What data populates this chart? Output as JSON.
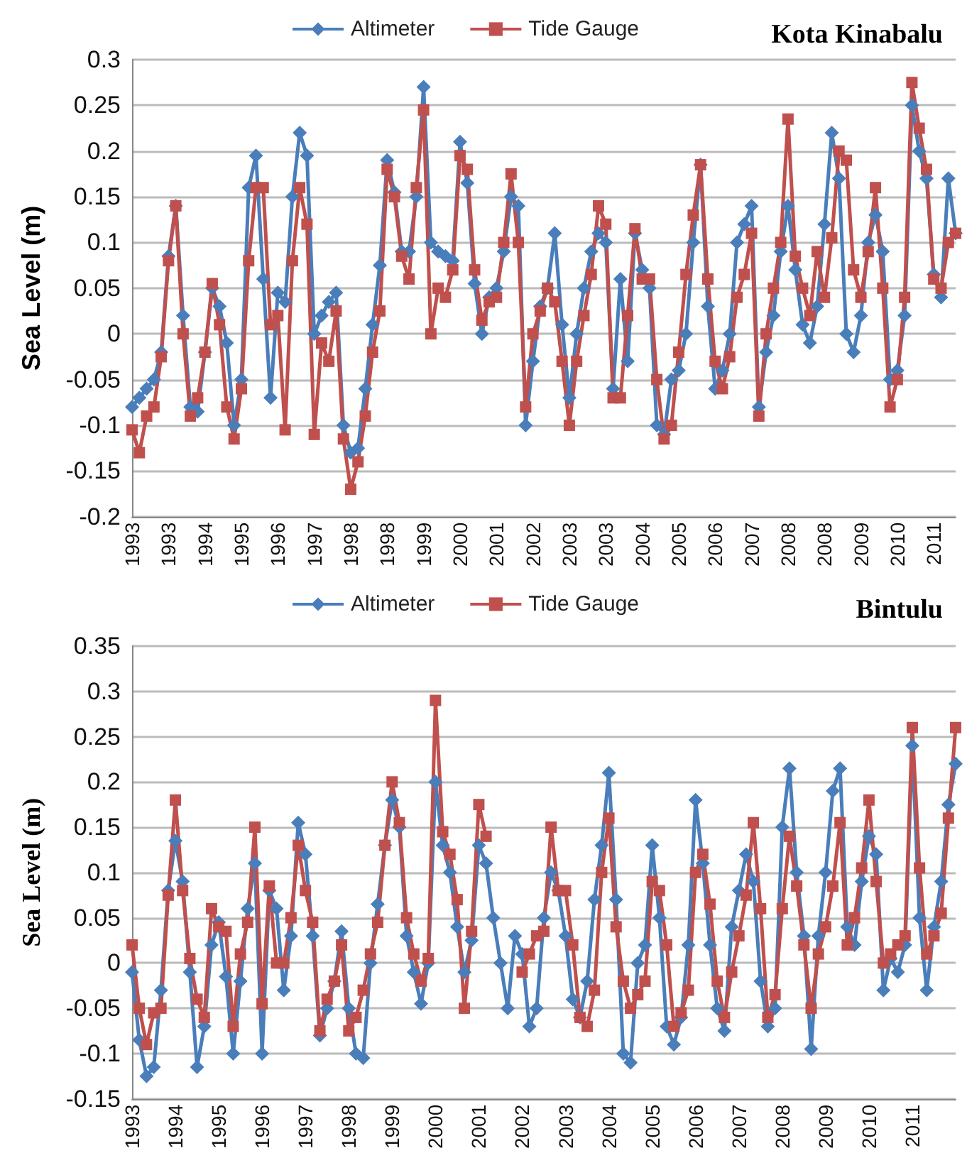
{
  "chart_data": [
    {
      "type": "line",
      "title": "Kota Kinabalu",
      "ylabel": "Sea Level (m)",
      "legend": "top",
      "grid": "y",
      "line_style": "solid",
      "categories": [
        "1993",
        null,
        null,
        null,
        null,
        "1993",
        null,
        null,
        null,
        null,
        "1994",
        null,
        null,
        null,
        null,
        "1995",
        null,
        null,
        null,
        null,
        "1996",
        null,
        null,
        null,
        null,
        "1997",
        null,
        null,
        null,
        null,
        "1998",
        null,
        null,
        null,
        null,
        "1998",
        null,
        null,
        null,
        null,
        "1999",
        null,
        null,
        null,
        null,
        "2000",
        null,
        null,
        null,
        null,
        "2001",
        null,
        null,
        null,
        null,
        "2002",
        null,
        null,
        null,
        null,
        "2003",
        null,
        null,
        null,
        null,
        "2003",
        null,
        null,
        null,
        null,
        "2004",
        null,
        null,
        null,
        null,
        "2005",
        null,
        null,
        null,
        null,
        "2006",
        null,
        null,
        null,
        null,
        "2007",
        null,
        null,
        null,
        null,
        "2008",
        null,
        null,
        null,
        null,
        "2008",
        null,
        null,
        null,
        null,
        "2009",
        null,
        null,
        null,
        null,
        "2010",
        null,
        null,
        null,
        null,
        "2011",
        null,
        null,
        null
      ],
      "ylim": [
        -0.2,
        0.3
      ],
      "yticks": [
        -0.2,
        -0.15,
        -0.1,
        -0.05,
        0,
        0.05,
        0.1,
        0.15,
        0.2,
        0.25,
        0.3
      ],
      "series": [
        {
          "name": "Altimeter",
          "color": "#4a7ebb",
          "marker": "diamond",
          "values": [
            -0.08,
            -0.07,
            -0.06,
            -0.05,
            -0.02,
            0.085,
            0.14,
            0.02,
            -0.08,
            -0.085,
            -0.02,
            0.05,
            0.03,
            -0.01,
            -0.1,
            -0.05,
            0.16,
            0.195,
            0.06,
            -0.07,
            0.045,
            0.035,
            0.15,
            0.22,
            0.195,
            0.0,
            0.02,
            0.035,
            0.045,
            -0.1,
            -0.13,
            -0.125,
            -0.06,
            0.01,
            0.075,
            0.19,
            0.155,
            0.09,
            0.09,
            0.15,
            0.27,
            0.1,
            0.09,
            0.085,
            0.08,
            0.21,
            0.165,
            0.055,
            0.0,
            0.04,
            0.05,
            0.09,
            0.15,
            0.14,
            -0.1,
            -0.03,
            0.03,
            0.05,
            0.11,
            0.01,
            -0.07,
            0.0,
            0.05,
            0.09,
            0.11,
            0.1,
            -0.06,
            0.06,
            -0.03,
            0.11,
            0.07,
            0.05,
            -0.1,
            -0.11,
            -0.05,
            -0.04,
            0.0,
            0.1,
            0.185,
            0.03,
            -0.06,
            -0.04,
            0.0,
            0.1,
            0.12,
            0.14,
            -0.08,
            -0.02,
            0.02,
            0.09,
            0.14,
            0.07,
            0.01,
            -0.01,
            0.03,
            0.12,
            0.22,
            0.17,
            0.0,
            -0.02,
            0.02,
            0.1,
            0.13,
            0.09,
            -0.05,
            -0.04,
            0.02,
            0.25,
            0.2,
            0.17,
            0.065,
            0.04,
            0.17,
            0.11
          ]
        },
        {
          "name": "Tide Gauge",
          "color": "#c0504d",
          "marker": "square",
          "values": [
            -0.105,
            -0.13,
            -0.09,
            -0.08,
            -0.025,
            0.08,
            0.14,
            0.0,
            -0.09,
            -0.07,
            -0.02,
            0.055,
            0.01,
            -0.08,
            -0.115,
            -0.06,
            0.08,
            0.16,
            0.16,
            0.01,
            0.02,
            -0.105,
            0.08,
            0.16,
            0.12,
            -0.11,
            -0.01,
            -0.03,
            0.025,
            -0.115,
            -0.17,
            -0.14,
            -0.09,
            -0.02,
            0.025,
            0.18,
            0.15,
            0.085,
            0.06,
            0.16,
            0.245,
            0.0,
            0.05,
            0.04,
            0.07,
            0.195,
            0.18,
            0.07,
            0.015,
            0.035,
            0.04,
            0.1,
            0.175,
            0.1,
            -0.08,
            0.0,
            0.025,
            0.05,
            0.035,
            -0.03,
            -0.1,
            -0.03,
            0.02,
            0.065,
            0.14,
            0.12,
            -0.07,
            -0.07,
            0.02,
            0.115,
            0.06,
            0.06,
            -0.05,
            -0.115,
            -0.1,
            -0.02,
            0.065,
            0.13,
            0.185,
            0.06,
            -0.03,
            -0.06,
            -0.025,
            0.04,
            0.065,
            0.11,
            -0.09,
            0.0,
            0.05,
            0.1,
            0.235,
            0.085,
            0.05,
            0.02,
            0.09,
            0.04,
            0.105,
            0.2,
            0.19,
            0.07,
            0.04,
            0.09,
            0.16,
            0.05,
            -0.08,
            -0.05,
            0.04,
            0.275,
            0.225,
            0.18,
            0.06,
            0.05,
            0.1,
            0.11
          ]
        }
      ]
    },
    {
      "type": "line",
      "title": "Bintulu",
      "ylabel": "Sea Level (m)",
      "legend": "top",
      "grid": "y",
      "line_style": "solid",
      "categories": [
        "1993",
        null,
        null,
        null,
        null,
        null,
        "1994",
        null,
        null,
        null,
        null,
        null,
        "1995",
        null,
        null,
        null,
        null,
        null,
        "1996",
        null,
        null,
        null,
        null,
        null,
        "1997",
        null,
        null,
        null,
        null,
        null,
        "1998",
        null,
        null,
        null,
        null,
        null,
        "1999",
        null,
        null,
        null,
        null,
        null,
        "2000",
        null,
        null,
        null,
        null,
        null,
        "2001",
        null,
        null,
        null,
        null,
        null,
        "2002",
        null,
        null,
        null,
        null,
        null,
        "2003",
        null,
        null,
        null,
        null,
        null,
        "2004",
        null,
        null,
        null,
        null,
        null,
        "2005",
        null,
        null,
        null,
        null,
        null,
        "2006",
        null,
        null,
        null,
        null,
        null,
        "2007",
        null,
        null,
        null,
        null,
        null,
        "2008",
        null,
        null,
        null,
        null,
        null,
        "2009",
        null,
        null,
        null,
        null,
        null,
        "2010",
        null,
        null,
        null,
        null,
        null,
        "2011",
        null,
        null,
        null,
        null,
        null,
        null
      ],
      "ylim": [
        -0.15,
        0.35
      ],
      "yticks": [
        -0.15,
        -0.1,
        -0.05,
        0,
        0.05,
        0.1,
        0.15,
        0.2,
        0.25,
        0.3,
        0.35
      ],
      "series": [
        {
          "name": "Altimeter",
          "color": "#4a7ebb",
          "marker": "diamond",
          "values": [
            -0.01,
            -0.085,
            -0.125,
            -0.115,
            -0.03,
            0.08,
            0.135,
            0.09,
            -0.01,
            -0.115,
            -0.07,
            0.02,
            0.045,
            -0.015,
            -0.1,
            -0.02,
            0.06,
            0.11,
            -0.1,
            0.08,
            0.06,
            -0.03,
            0.03,
            0.155,
            0.12,
            0.03,
            -0.08,
            -0.05,
            -0.02,
            0.035,
            -0.05,
            -0.1,
            -0.105,
            0.0,
            0.065,
            0.13,
            0.18,
            0.15,
            0.03,
            -0.01,
            -0.045,
            0.0,
            0.2,
            0.13,
            0.1,
            0.04,
            -0.01,
            0.025,
            0.13,
            0.11,
            0.05,
            0.0,
            -0.05,
            0.03,
            0.01,
            -0.07,
            -0.05,
            0.05,
            0.1,
            0.08,
            0.03,
            -0.04,
            -0.06,
            -0.02,
            0.07,
            0.13,
            0.21,
            0.07,
            -0.1,
            -0.11,
            0.0,
            0.02,
            0.13,
            0.05,
            -0.07,
            -0.09,
            -0.06,
            0.02,
            0.18,
            0.11,
            0.02,
            -0.05,
            -0.075,
            0.04,
            0.08,
            0.12,
            0.09,
            -0.02,
            -0.07,
            -0.05,
            0.15,
            0.215,
            0.1,
            0.03,
            -0.095,
            0.03,
            0.1,
            0.19,
            0.215,
            0.04,
            0.02,
            0.09,
            0.14,
            0.12,
            -0.03,
            0.005,
            -0.01,
            0.02,
            0.24,
            0.05,
            -0.03,
            0.04,
            0.09,
            0.175,
            0.22
          ]
        },
        {
          "name": "Tide Gauge",
          "color": "#c0504d",
          "marker": "square",
          "values": [
            0.02,
            -0.05,
            -0.09,
            -0.055,
            -0.05,
            0.075,
            0.18,
            0.08,
            0.005,
            -0.04,
            -0.06,
            0.06,
            0.04,
            0.035,
            -0.07,
            0.01,
            0.045,
            0.15,
            -0.045,
            0.085,
            0.0,
            0.0,
            0.05,
            0.13,
            0.08,
            0.045,
            -0.075,
            -0.04,
            -0.02,
            0.02,
            -0.075,
            -0.06,
            -0.03,
            0.01,
            0.045,
            0.13,
            0.2,
            0.155,
            0.05,
            0.01,
            -0.02,
            0.005,
            0.29,
            0.145,
            0.12,
            0.07,
            -0.05,
            0.035,
            0.175,
            0.14,
            null,
            null,
            null,
            null,
            -0.01,
            0.01,
            0.03,
            0.035,
            0.15,
            0.08,
            0.08,
            0.02,
            -0.06,
            -0.07,
            -0.03,
            0.1,
            0.16,
            0.04,
            -0.02,
            -0.05,
            -0.035,
            -0.02,
            0.09,
            0.08,
            0.02,
            -0.07,
            -0.055,
            -0.03,
            0.1,
            0.12,
            0.065,
            -0.02,
            -0.06,
            -0.01,
            0.03,
            0.075,
            0.155,
            0.06,
            -0.06,
            -0.035,
            0.06,
            0.14,
            0.085,
            0.02,
            -0.05,
            0.01,
            0.04,
            0.085,
            0.155,
            0.02,
            0.05,
            0.105,
            0.18,
            0.09,
            0.0,
            0.01,
            0.02,
            0.03,
            0.26,
            0.105,
            0.01,
            0.03,
            0.055,
            0.16,
            0.26
          ]
        }
      ]
    }
  ]
}
